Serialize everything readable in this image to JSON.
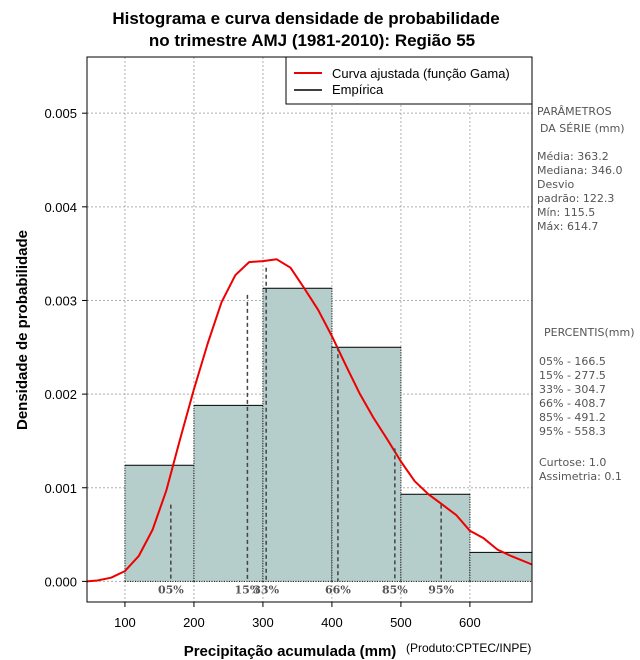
{
  "chart_data": {
    "type": "bar",
    "title_line1": "Histograma e curva densidade de probabilidade",
    "title_line2": "no trimestre AMJ (1981-2010): Região 55",
    "xlabel": "Precipitação acumulada (mm)",
    "ylabel": "Densidade de probabilidade",
    "credit": "(Produto:CPTEC/INPE)",
    "xlim": [
      45,
      690
    ],
    "ylim": [
      -0.00022,
      0.0056
    ],
    "x_ticks": [
      100,
      200,
      300,
      400,
      500,
      600
    ],
    "x_tick_labels": [
      "100",
      "200",
      "300",
      "400",
      "500",
      "600"
    ],
    "y_ticks": [
      0.0,
      0.001,
      0.002,
      0.003,
      0.004,
      0.005
    ],
    "y_tick_labels": [
      "0.000",
      "0.001",
      "0.002",
      "0.003",
      "0.004",
      "0.005"
    ],
    "grid": true,
    "bins": [
      {
        "from": 100,
        "to": 200,
        "density": 0.00124
      },
      {
        "from": 200,
        "to": 300,
        "density": 0.00188
      },
      {
        "from": 300,
        "to": 400,
        "density": 0.00313
      },
      {
        "from": 400,
        "to": 500,
        "density": 0.0025
      },
      {
        "from": 500,
        "to": 600,
        "density": 0.00093
      },
      {
        "from": 600,
        "to": 700,
        "density": 0.00031
      }
    ],
    "fitted_curve": {
      "name": "Curva ajustada (função Gama)",
      "x": [
        45,
        60,
        80,
        100,
        120,
        140,
        160,
        180,
        200,
        220,
        240,
        260,
        280,
        300,
        320,
        340,
        360,
        380,
        400,
        420,
        440,
        460,
        480,
        500,
        520,
        540,
        560,
        580,
        600,
        620,
        640,
        660,
        690
      ],
      "y": [
        0.0,
        1e-05,
        4e-05,
        0.00011,
        0.00027,
        0.00055,
        0.00097,
        0.00152,
        0.00205,
        0.00254,
        0.00298,
        0.00327,
        0.00341,
        0.00342,
        0.00344,
        0.00335,
        0.00313,
        0.0029,
        0.00262,
        0.00231,
        0.00201,
        0.00175,
        0.00152,
        0.00128,
        0.00107,
        0.00093,
        0.00082,
        0.00071,
        0.00054,
        0.00046,
        0.00034,
        0.00027,
        0.00018
      ]
    },
    "empirical_legend": "Empírica",
    "percentile_markers": [
      {
        "label": "05%",
        "x": 166.5,
        "y": 0.00082
      },
      {
        "label": "15%",
        "x": 277.5,
        "y": 0.00306
      },
      {
        "label": "33%",
        "x": 304.7,
        "y": 0.00335
      },
      {
        "label": "66%",
        "x": 408.7,
        "y": 0.0025
      },
      {
        "label": "85%",
        "x": 491.2,
        "y": 0.00142
      },
      {
        "label": "95%",
        "x": 558.3,
        "y": 0.00082
      }
    ]
  },
  "stats_panel": {
    "heading1": "PARÂMETROS",
    "heading2": "DA SÉRIE (mm)",
    "lines": [
      "Média:  363.2",
      "Mediana:  346.0",
      "Desvio",
      "padrão:  122.3",
      "Mín:  115.5",
      "Máx:  614.7"
    ]
  },
  "percentis_panel": {
    "heading": "PERCENTIS(mm)",
    "lines": [
      "05% -   166.5",
      "15% -   277.5",
      "33% -   304.7",
      "66% -   408.7",
      "85% -   491.2",
      "95% -   558.3"
    ]
  },
  "shape_panel": {
    "lines": [
      "Curtose:  1.0",
      "Assimetria:  0.1"
    ]
  },
  "colors": {
    "bar_fill": "#b5cdcb",
    "curve": "#ee0000",
    "grid": "#b0b0b0",
    "marker_line": "#444444"
  }
}
